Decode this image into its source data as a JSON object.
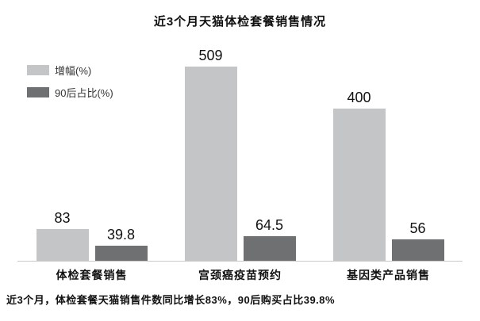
{
  "title": "近3个月天猫体检套餐销售情况",
  "legend": [
    {
      "label": "增幅(%)",
      "color": "#c4c5c7"
    },
    {
      "label": "90后占比(%)",
      "color": "#6f7072"
    }
  ],
  "chart_data": {
    "type": "bar",
    "title": "近3个月天猫体检套餐销售情况",
    "categories": [
      "体检套餐销售",
      "宫颈癌疫苗预约",
      "基因类产品销售"
    ],
    "series": [
      {
        "name": "增幅(%)",
        "color": "#c4c5c7",
        "values": [
          83,
          509,
          400
        ]
      },
      {
        "name": "90后占比(%)",
        "color": "#6f7072",
        "values": [
          39.8,
          64.5,
          56
        ]
      }
    ],
    "xlabel": "",
    "ylabel": "",
    "ylim": [
      0,
      509
    ],
    "grid": false,
    "legend_position": "top-left",
    "value_labels": true
  },
  "footer": "近3个月，体检套餐天猫销售件数同比增长83%，90后购买占比39.8%"
}
